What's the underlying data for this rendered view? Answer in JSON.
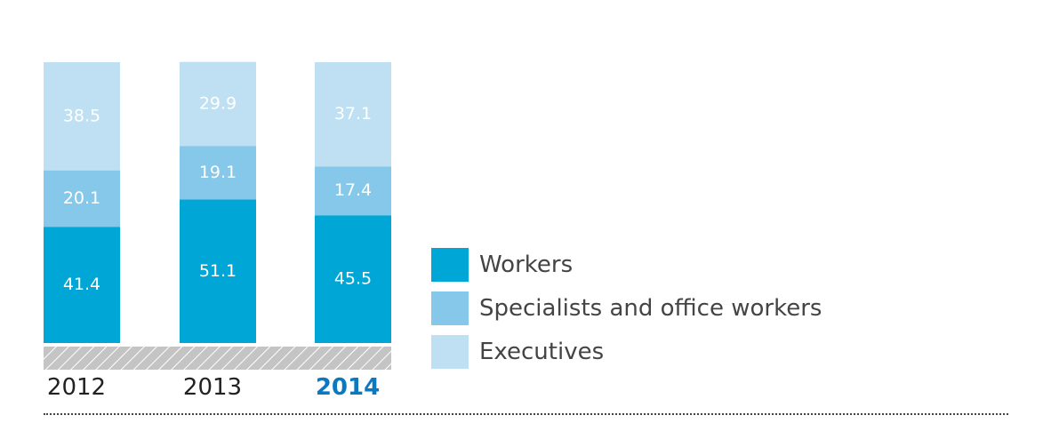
{
  "chart_data": {
    "type": "bar",
    "stacked": true,
    "categories": [
      "2012",
      "2013",
      "2014"
    ],
    "highlight_category": "2014",
    "series": [
      {
        "name": "Workers",
        "values": [
          41.4,
          51.1,
          45.5
        ],
        "color": "#00a6d6"
      },
      {
        "name": "Specialists and office workers",
        "values": [
          20.1,
          19.1,
          17.4
        ],
        "color": "#86c8e9"
      },
      {
        "name": "Executives",
        "values": [
          38.5,
          29.9,
          37.1
        ],
        "color": "#bee0f2"
      }
    ],
    "ylim": [
      0,
      100
    ],
    "legend_position": "right",
    "grid": false
  }
}
